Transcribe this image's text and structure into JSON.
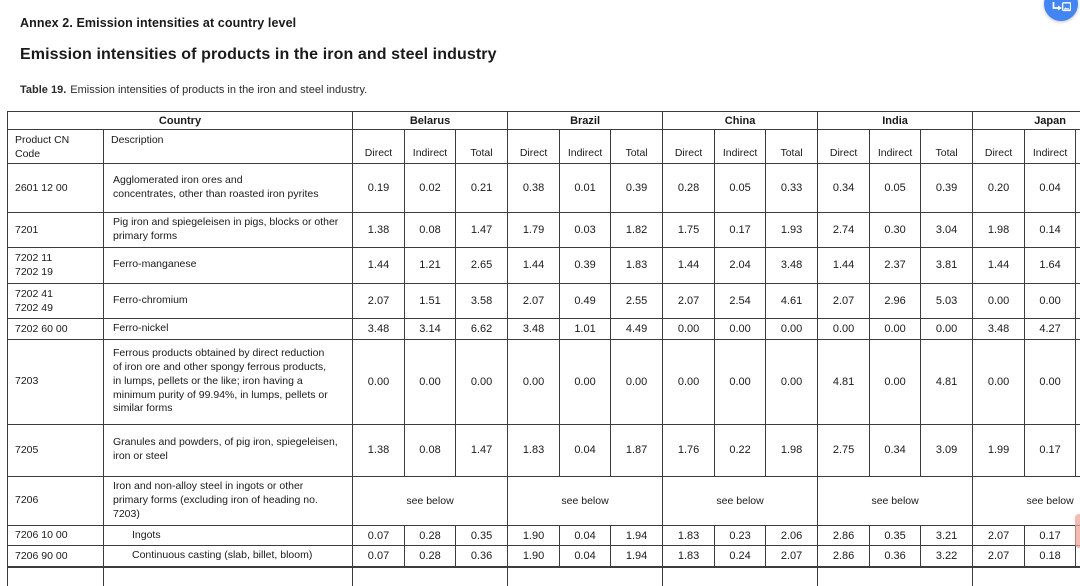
{
  "page": {
    "annex_title": "Annex 2. Emission intensities at country level",
    "section_title": "Emission intensities of products in the iron and steel industry"
  },
  "colors": {
    "floating_button": "#4285f4",
    "edge_marker": "#f0a49a",
    "border": "#3c3c3c"
  },
  "floating_button": {
    "icon": "open-image-icon"
  },
  "table": {
    "caption": {
      "label": "Table 19.",
      "text": "Emission intensities of products in the iron and steel industry."
    },
    "header": {
      "country_label": "Country",
      "code_label": "Product CN Code",
      "description_label": "Description",
      "countries": [
        "Belarus",
        "Brazil",
        "China",
        "India",
        "Japan"
      ],
      "metrics": [
        "Direct",
        "Indirect",
        "Total"
      ]
    },
    "rows": [
      {
        "code": "2601 12 00",
        "description": "Agglomerated iron ores and\nconcentrates, other than roasted iron pyrites",
        "values": [
          [
            "0.19",
            "0.02",
            "0.21"
          ],
          [
            "0.38",
            "0.01",
            "0.39"
          ],
          [
            "0.28",
            "0.05",
            "0.33"
          ],
          [
            "0.34",
            "0.05",
            "0.39"
          ],
          [
            "0.20",
            "0.04"
          ]
        ]
      },
      {
        "code": "7201",
        "description": "Pig iron and spiegeleisen in pigs, blocks or other\nprimary forms",
        "values": [
          [
            "1.38",
            "0.08",
            "1.47"
          ],
          [
            "1.79",
            "0.03",
            "1.82"
          ],
          [
            "1.75",
            "0.17",
            "1.93"
          ],
          [
            "2.74",
            "0.30",
            "3.04"
          ],
          [
            "1.98",
            "0.14"
          ]
        ]
      },
      {
        "code": "7202 11\n7202 19",
        "description": "Ferro-manganese",
        "values": [
          [
            "1.44",
            "1.21",
            "2.65"
          ],
          [
            "1.44",
            "0.39",
            "1.83"
          ],
          [
            "1.44",
            "2.04",
            "3.48"
          ],
          [
            "1.44",
            "2.37",
            "3.81"
          ],
          [
            "1.44",
            "1.64"
          ]
        ]
      },
      {
        "code": "7202 41\n7202 49",
        "description": "Ferro-chromium",
        "values": [
          [
            "2.07",
            "1.51",
            "3.58"
          ],
          [
            "2.07",
            "0.49",
            "2.55"
          ],
          [
            "2.07",
            "2.54",
            "4.61"
          ],
          [
            "2.07",
            "2.96",
            "5.03"
          ],
          [
            "0.00",
            "0.00"
          ]
        ]
      },
      {
        "code": "7202 60 00",
        "description": "Ferro-nickel",
        "values": [
          [
            "3.48",
            "3.14",
            "6.62"
          ],
          [
            "3.48",
            "1.01",
            "4.49"
          ],
          [
            "0.00",
            "0.00",
            "0.00"
          ],
          [
            "0.00",
            "0.00",
            "0.00"
          ],
          [
            "3.48",
            "4.27"
          ]
        ]
      },
      {
        "code": "7203",
        "description": "Ferrous products obtained by direct reduction\nof iron ore and other spongy ferrous products,\nin lumps, pellets or the like; iron having a\nminimum purity of 99.94%, in lumps, pellets or\nsimilar forms",
        "values": [
          [
            "0.00",
            "0.00",
            "0.00"
          ],
          [
            "0.00",
            "0.00",
            "0.00"
          ],
          [
            "0.00",
            "0.00",
            "0.00"
          ],
          [
            "4.81",
            "0.00",
            "4.81"
          ],
          [
            "0.00",
            "0.00"
          ]
        ]
      },
      {
        "code": "7205",
        "description": "Granules and powders, of pig iron, spiegeleisen,\niron or steel",
        "values": [
          [
            "1.38",
            "0.08",
            "1.47"
          ],
          [
            "1.83",
            "0.04",
            "1.87"
          ],
          [
            "1.76",
            "0.22",
            "1.98"
          ],
          [
            "2.75",
            "0.34",
            "3.09"
          ],
          [
            "1.99",
            "0.17"
          ]
        ]
      },
      {
        "code": "7206",
        "description": "Iron and non-alloy steel in ingots or other\nprimary forms (excluding iron of heading no.\n7203)",
        "merged": true,
        "merged_text": "see below"
      },
      {
        "code": "7206 10 00",
        "description": "Ingots",
        "indent": true,
        "values": [
          [
            "0.07",
            "0.28",
            "0.35"
          ],
          [
            "1.90",
            "0.04",
            "1.94"
          ],
          [
            "1.83",
            "0.23",
            "2.06"
          ],
          [
            "2.86",
            "0.35",
            "3.21"
          ],
          [
            "2.07",
            "0.17"
          ]
        ]
      },
      {
        "code": "7206 90 00",
        "description": "Continuous casting (slab, billet, bloom)",
        "indent": true,
        "thick_bottom": true,
        "values": [
          [
            "0.07",
            "0.28",
            "0.36"
          ],
          [
            "1.90",
            "0.04",
            "1.94"
          ],
          [
            "1.83",
            "0.24",
            "2.07"
          ],
          [
            "2.86",
            "0.36",
            "3.22"
          ],
          [
            "2.07",
            "0.18"
          ]
        ]
      },
      {
        "code": "",
        "description": "",
        "merged": true,
        "merged_text": ""
      }
    ]
  }
}
